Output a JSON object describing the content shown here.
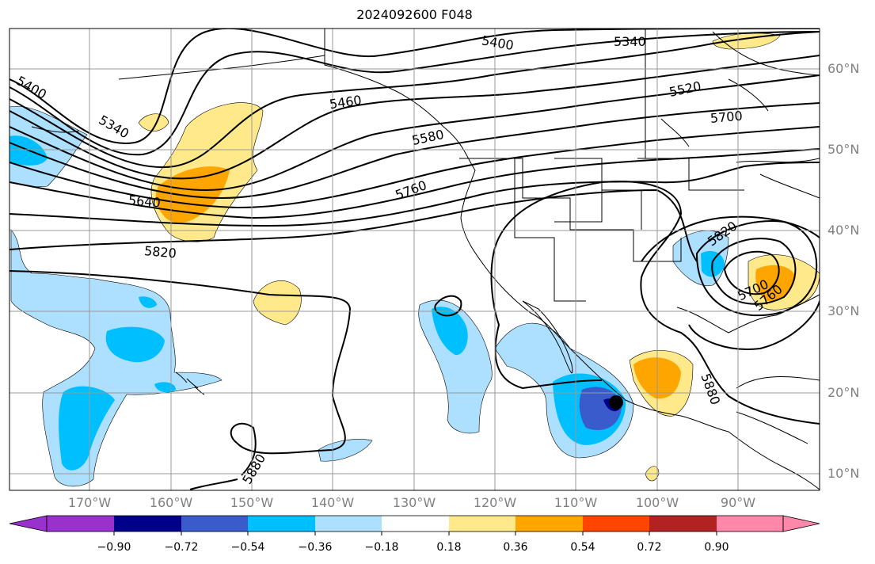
{
  "title": "2024092600 F048",
  "lat_labels": [
    "60°N",
    "50°N",
    "40°N",
    "30°N",
    "20°N",
    "10°N"
  ],
  "lon_labels": [
    "170°W",
    "160°W",
    "150°W",
    "140°W",
    "130°W",
    "120°W",
    "110°W",
    "100°W",
    "90°W"
  ],
  "contour_labels": [
    "5400",
    "5340",
    "5520",
    "5460",
    "5580",
    "5700",
    "5760",
    "5640",
    "5820",
    "5820",
    "5700",
    "5760",
    "5880",
    "5880",
    "5400",
    "5340"
  ],
  "colorbar": {
    "ticks": [
      "−0.90",
      "−0.72",
      "−0.54",
      "−0.36",
      "−0.18",
      "0.18",
      "0.36",
      "0.54",
      "0.72",
      "0.90"
    ],
    "colors": [
      "#9932CC",
      "#00008B",
      "#3A5BCC",
      "#00BFFF",
      "#ADDFFF",
      "#FFFFFF",
      "#FFE98A",
      "#FFA500",
      "#FF4500",
      "#B22222",
      "#FF88AA"
    ]
  },
  "colors": {
    "land_outline": "#000000",
    "grid": "#999999",
    "contour": "#000000"
  }
}
